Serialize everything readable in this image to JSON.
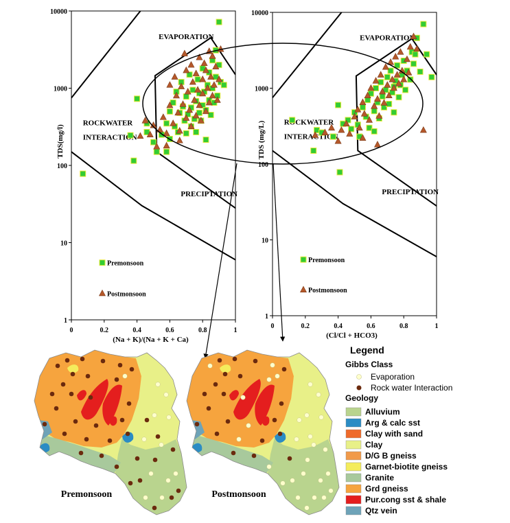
{
  "chart_data": [
    {
      "type": "scatter",
      "xlabel": "(Na + K)/(Na + K + Ca)",
      "ylabel": "TDS(mg/l)",
      "xlim": [
        0,
        1
      ],
      "ylim": [
        1,
        10000
      ],
      "log_y": true,
      "x_ticks": [
        "0",
        "0.2",
        "0.4",
        "0.6",
        "0.8",
        "1"
      ],
      "y_ticks": [
        "1",
        "10",
        "100",
        "1000",
        "10000"
      ],
      "zones": [
        "EVAPORATION",
        "ROCKWATER",
        "INTERACTION",
        "PRECIPTATION"
      ],
      "legend": [
        "Premonsoon",
        "Postmonsoon"
      ],
      "legend_position": "bottom-left",
      "series": [
        {
          "name": "Premonsoon",
          "color": "#33cc33",
          "points": [
            [
              0.07,
              78
            ],
            [
              0.38,
              115
            ],
            [
              0.36,
              245
            ],
            [
              0.4,
              730
            ],
            [
              0.46,
              270
            ],
            [
              0.46,
              350
            ],
            [
              0.5,
              200
            ],
            [
              0.52,
              150
            ],
            [
              0.55,
              250
            ],
            [
              0.58,
              150
            ],
            [
              0.58,
              350
            ],
            [
              0.6,
              220
            ],
            [
              0.6,
              500
            ],
            [
              0.62,
              650
            ],
            [
              0.63,
              320
            ],
            [
              0.64,
              900
            ],
            [
              0.65,
              270
            ],
            [
              0.66,
              480
            ],
            [
              0.67,
              1200
            ],
            [
              0.68,
              580
            ],
            [
              0.69,
              380
            ],
            [
              0.7,
              260
            ],
            [
              0.7,
              780
            ],
            [
              0.71,
              460
            ],
            [
              0.72,
              1500
            ],
            [
              0.73,
              320
            ],
            [
              0.73,
              560
            ],
            [
              0.74,
              950
            ],
            [
              0.75,
              400
            ],
            [
              0.76,
              270
            ],
            [
              0.76,
              680
            ],
            [
              0.77,
              1300
            ],
            [
              0.78,
              480
            ],
            [
              0.78,
              860
            ],
            [
              0.79,
              380
            ],
            [
              0.8,
              600
            ],
            [
              0.8,
              1800
            ],
            [
              0.81,
              900
            ],
            [
              0.82,
              520
            ],
            [
              0.83,
              1100
            ],
            [
              0.84,
              700
            ],
            [
              0.84,
              1600
            ],
            [
              0.85,
              450
            ],
            [
              0.86,
              2300
            ],
            [
              0.86,
              1000
            ],
            [
              0.87,
              650
            ],
            [
              0.88,
              1400
            ],
            [
              0.88,
              3100
            ],
            [
              0.89,
              800
            ],
            [
              0.9,
              2000
            ],
            [
              0.9,
              7200
            ],
            [
              0.91,
              1200
            ],
            [
              0.93,
              1100
            ],
            [
              0.82,
              215
            ]
          ]
        },
        {
          "name": "Postmonsoon",
          "color": "#b5582a",
          "points": [
            [
              0.42,
              240
            ],
            [
              0.45,
              380
            ],
            [
              0.48,
              250
            ],
            [
              0.5,
              330
            ],
            [
              0.52,
              175
            ],
            [
              0.54,
              290
            ],
            [
              0.56,
              420
            ],
            [
              0.58,
              260
            ],
            [
              0.6,
              1100
            ],
            [
              0.6,
              600
            ],
            [
              0.62,
              350
            ],
            [
              0.63,
              1400
            ],
            [
              0.64,
              800
            ],
            [
              0.65,
              480
            ],
            [
              0.66,
              280
            ],
            [
              0.67,
              1050
            ],
            [
              0.68,
              620
            ],
            [
              0.69,
              2800
            ],
            [
              0.7,
              410
            ],
            [
              0.7,
              1700
            ],
            [
              0.71,
              900
            ],
            [
              0.72,
              520
            ],
            [
              0.73,
              320
            ],
            [
              0.73,
              2000
            ],
            [
              0.74,
              1200
            ],
            [
              0.75,
              700
            ],
            [
              0.76,
              440
            ],
            [
              0.76,
              1550
            ],
            [
              0.77,
              950
            ],
            [
              0.78,
              2500
            ],
            [
              0.78,
              600
            ],
            [
              0.79,
              380
            ],
            [
              0.8,
              1300
            ],
            [
              0.8,
              850
            ],
            [
              0.81,
              2100
            ],
            [
              0.82,
              500
            ],
            [
              0.82,
              1700
            ],
            [
              0.83,
              1000
            ],
            [
              0.84,
              3000
            ],
            [
              0.84,
              650
            ],
            [
              0.85,
              1400
            ],
            [
              0.86,
              800
            ],
            [
              0.86,
              2600
            ],
            [
              0.87,
              1100
            ],
            [
              0.88,
              1900
            ],
            [
              0.89,
              700
            ],
            [
              0.9,
              1300
            ],
            [
              0.91,
              3200
            ],
            [
              0.58,
              180
            ],
            [
              0.66,
              210
            ]
          ]
        }
      ]
    },
    {
      "type": "scatter",
      "xlabel": "(Cl/Cl + HCO3)",
      "ylabel": "TDS (mg/L)",
      "xlim": [
        0,
        1
      ],
      "ylim": [
        1,
        10000
      ],
      "log_y": true,
      "x_ticks": [
        "0",
        "0.2",
        "0.4",
        "0.6",
        "0.8",
        "1"
      ],
      "y_ticks": [
        "1",
        "10",
        "100",
        "1000",
        "10000"
      ],
      "zones": [
        "EVAPORATION",
        "ROCKWATER",
        "INTERACTION",
        "PRECIPTATION"
      ],
      "legend": [
        "Premonsoon",
        "Postmonsoon"
      ],
      "legend_position": "bottom-left",
      "series": [
        {
          "name": "Premonsoon",
          "color": "#33cc33",
          "points": [
            [
              0.12,
              380
            ],
            [
              0.25,
              150
            ],
            [
              0.27,
              280
            ],
            [
              0.3,
              260
            ],
            [
              0.37,
              230
            ],
            [
              0.41,
              78
            ],
            [
              0.4,
              600
            ],
            [
              0.43,
              340
            ],
            [
              0.46,
              380
            ],
            [
              0.48,
              290
            ],
            [
              0.5,
              480
            ],
            [
              0.52,
              330
            ],
            [
              0.53,
              230
            ],
            [
              0.55,
              560
            ],
            [
              0.57,
              420
            ],
            [
              0.58,
              700
            ],
            [
              0.59,
              300
            ],
            [
              0.6,
              850
            ],
            [
              0.62,
              500
            ],
            [
              0.63,
              1000
            ],
            [
              0.64,
              650
            ],
            [
              0.65,
              400
            ],
            [
              0.66,
              1200
            ],
            [
              0.67,
              780
            ],
            [
              0.68,
              560
            ],
            [
              0.69,
              950
            ],
            [
              0.7,
              1400
            ],
            [
              0.71,
              620
            ],
            [
              0.72,
              1700
            ],
            [
              0.73,
              880
            ],
            [
              0.74,
              480
            ],
            [
              0.75,
              1250
            ],
            [
              0.76,
              2000
            ],
            [
              0.77,
              760
            ],
            [
              0.78,
              1100
            ],
            [
              0.79,
              1500
            ],
            [
              0.8,
              2300
            ],
            [
              0.81,
              950
            ],
            [
              0.82,
              1700
            ],
            [
              0.84,
              1300
            ],
            [
              0.85,
              3000
            ],
            [
              0.86,
              2100
            ],
            [
              0.87,
              2800
            ],
            [
              0.88,
              4600
            ],
            [
              0.9,
              1650
            ],
            [
              0.92,
              7000
            ],
            [
              0.94,
              2800
            ],
            [
              0.97,
              1400
            ],
            [
              0.74,
              1050
            ],
            [
              0.62,
              270
            ]
          ]
        },
        {
          "name": "Postmonsoon",
          "color": "#b5582a",
          "points": [
            [
              0.26,
              240
            ],
            [
              0.32,
              260
            ],
            [
              0.36,
              300
            ],
            [
              0.4,
              200
            ],
            [
              0.42,
              280
            ],
            [
              0.45,
              340
            ],
            [
              0.47,
              250
            ],
            [
              0.5,
              420
            ],
            [
              0.52,
              520
            ],
            [
              0.53,
              300
            ],
            [
              0.55,
              650
            ],
            [
              0.56,
              460
            ],
            [
              0.58,
              800
            ],
            [
              0.59,
              380
            ],
            [
              0.6,
              1000
            ],
            [
              0.62,
              580
            ],
            [
              0.63,
              1250
            ],
            [
              0.64,
              720
            ],
            [
              0.65,
              430
            ],
            [
              0.66,
              1500
            ],
            [
              0.67,
              900
            ],
            [
              0.68,
              640
            ],
            [
              0.69,
              1900
            ],
            [
              0.7,
              1100
            ],
            [
              0.71,
              800
            ],
            [
              0.72,
              2200
            ],
            [
              0.73,
              1300
            ],
            [
              0.74,
              1000
            ],
            [
              0.75,
              2600
            ],
            [
              0.76,
              1500
            ],
            [
              0.77,
              1150
            ],
            [
              0.78,
              3000
            ],
            [
              0.79,
              1700
            ],
            [
              0.8,
              1300
            ],
            [
              0.82,
              2400
            ],
            [
              0.83,
              1600
            ],
            [
              0.84,
              3500
            ],
            [
              0.86,
              4800
            ],
            [
              0.88,
              3300
            ],
            [
              0.92,
              280
            ],
            [
              0.64,
              180
            ],
            [
              0.55,
              220
            ]
          ]
        }
      ]
    }
  ],
  "maps": [
    {
      "label": "Premonsoon"
    },
    {
      "label": "Postmonsoon"
    }
  ],
  "legend": {
    "title": "Legend",
    "gibbs_title": "Gibbs Class",
    "gibbs": [
      {
        "label": "Evaporation",
        "color": "#ffffcc"
      },
      {
        "label": "Rock water Interaction",
        "color": "#6b2a0e"
      }
    ],
    "geology_title": "Geology",
    "geology": [
      {
        "label": "Alluvium",
        "color": "#b9d48e"
      },
      {
        "label": "Arg & calc sst",
        "color": "#2b8cc4"
      },
      {
        "label": "Clay with sand",
        "color": "#ef6a2a"
      },
      {
        "label": "Clay",
        "color": "#e8f088"
      },
      {
        "label": "D/G B gneiss",
        "color": "#f19a4a"
      },
      {
        "label": "Garnet-biotite gneiss",
        "color": "#f4ec5c"
      },
      {
        "label": "Granite",
        "color": "#a8c99c"
      },
      {
        "label": "Grd gneiss",
        "color": "#f6a43e"
      },
      {
        "label": "Pur.cong sst & shale",
        "color": "#e41e1e"
      },
      {
        "label": "Qtz vein",
        "color": "#6ea3b8"
      }
    ]
  }
}
